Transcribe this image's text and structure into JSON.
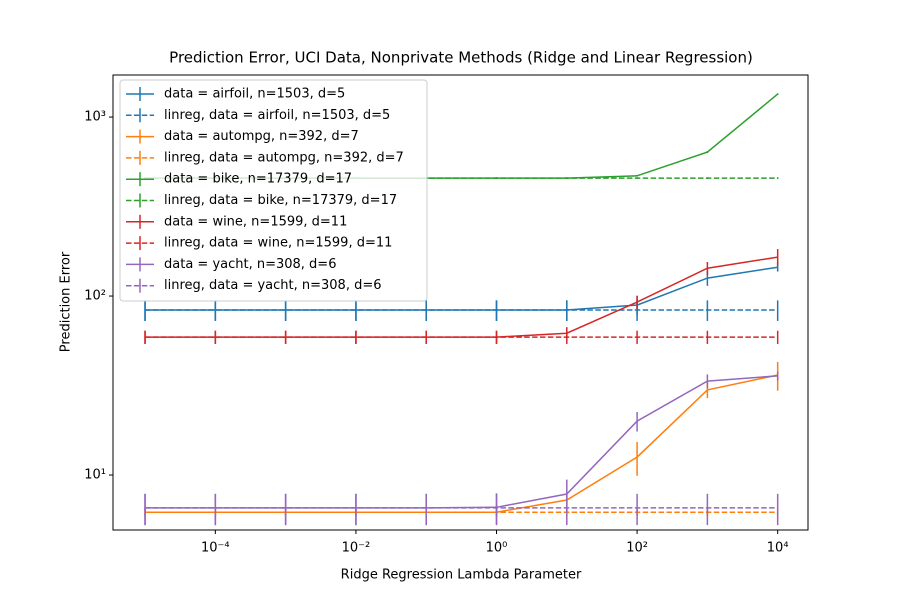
{
  "chart_data": {
    "type": "line",
    "title": "Prediction Error, UCI Data, Nonprivate Methods (Ridge and Linear Regression)",
    "xlabel": "Ridge Regression Lambda Parameter",
    "ylabel": "Prediction Error",
    "xscale": "log",
    "yscale": "log",
    "x": [
      1e-05,
      0.0001,
      0.001,
      0.01,
      0.1,
      1,
      10,
      100,
      1000,
      10000
    ],
    "xlim": [
      3.5e-06,
      27000
    ],
    "ylim": [
      4.93,
      1718
    ],
    "xticks": [
      {
        "value": 0.0001,
        "label": "10⁻⁴"
      },
      {
        "value": 0.01,
        "label": "10⁻²"
      },
      {
        "value": 1,
        "label": "10⁰"
      },
      {
        "value": 100,
        "label": "10²"
      },
      {
        "value": 10000,
        "label": "10⁴"
      }
    ],
    "yticks": [
      {
        "value": 10,
        "label": "10¹"
      },
      {
        "value": 100,
        "label": "10²"
      },
      {
        "value": 1000,
        "label": "10³"
      }
    ],
    "legend": "upper left",
    "series": [
      {
        "name": "data = airfoil, n=1503, d=5",
        "color": "#1f77b4",
        "linestyle": "solid",
        "values": [
          83.6,
          83.6,
          83.6,
          83.6,
          83.6,
          83.6,
          83.6,
          89,
          126,
          145
        ],
        "errors": [
          11,
          11,
          11,
          11,
          11,
          11,
          11,
          11,
          12,
          8
        ]
      },
      {
        "name": "linreg, data = airfoil, n=1503, d=5",
        "color": "#1f77b4",
        "linestyle": "dashed",
        "values": [
          83.6,
          83.6,
          83.6,
          83.6,
          83.6,
          83.6,
          83.6,
          83.6,
          83.6,
          83.6
        ],
        "errors": [
          11,
          11,
          11,
          11,
          11,
          11,
          11,
          11,
          11,
          11
        ]
      },
      {
        "name": "data = autompg, n=392, d=7",
        "color": "#ff7f0e",
        "linestyle": "solid",
        "values": [
          6.2,
          6.2,
          6.2,
          6.2,
          6.2,
          6.2,
          7.25,
          12.6,
          29.9,
          36.2
        ],
        "errors": [
          0.3,
          0.3,
          0.3,
          0.3,
          0.3,
          0.3,
          0.5,
          2.7,
          3,
          6.6
        ]
      },
      {
        "name": "linreg, data = autompg, n=392, d=7",
        "color": "#ff7f0e",
        "linestyle": "dashed",
        "values": [
          6.2,
          6.2,
          6.2,
          6.2,
          6.2,
          6.2,
          6.2,
          6.2,
          6.2,
          6.2
        ],
        "errors": [
          0.3,
          0.3,
          0.3,
          0.3,
          0.3,
          0.3,
          0.3,
          0.3,
          0.3,
          0.3
        ]
      },
      {
        "name": "data = bike, n=17379, d=17",
        "color": "#2ca02c",
        "linestyle": "solid",
        "values": [
          456,
          456,
          456,
          456,
          456,
          456,
          456,
          470,
          637,
          1343
        ],
        "errors": [
          5,
          5,
          5,
          5,
          5,
          5,
          5,
          5,
          8,
          15
        ]
      },
      {
        "name": "linreg, data = bike, n=17379, d=17",
        "color": "#2ca02c",
        "linestyle": "dashed",
        "values": [
          456,
          456,
          456,
          456,
          456,
          456,
          456,
          456,
          456,
          456
        ],
        "errors": [
          5,
          5,
          5,
          5,
          5,
          5,
          5,
          5,
          5,
          5
        ]
      },
      {
        "name": "data = wine, n=1599, d=11",
        "color": "#d62728",
        "linestyle": "solid",
        "values": [
          59,
          59,
          59,
          59,
          59,
          59,
          62,
          92.5,
          143,
          165
        ],
        "errors": [
          5,
          5,
          5,
          5,
          5,
          5,
          5,
          8,
          12,
          18
        ]
      },
      {
        "name": "linreg, data = wine, n=1599, d=11",
        "color": "#d62728",
        "linestyle": "dashed",
        "values": [
          59,
          59,
          59,
          59,
          59,
          59,
          59,
          59,
          59,
          59
        ],
        "errors": [
          5,
          5,
          5,
          5,
          5,
          5,
          5,
          5,
          5,
          5
        ]
      },
      {
        "name": "data = yacht, n=308, d=6",
        "color": "#9467bd",
        "linestyle": "solid",
        "values": [
          6.55,
          6.55,
          6.55,
          6.55,
          6.55,
          6.6,
          7.83,
          20,
          33.5,
          35.8
        ],
        "errors": [
          1.3,
          1.3,
          1.3,
          1.3,
          1.3,
          1.3,
          1.6,
          2.5,
          3,
          2
        ]
      },
      {
        "name": "linreg, data = yacht, n=308, d=6",
        "color": "#9467bd",
        "linestyle": "dashed",
        "values": [
          6.55,
          6.55,
          6.55,
          6.55,
          6.55,
          6.55,
          6.55,
          6.55,
          6.55,
          6.55
        ],
        "errors": [
          1.3,
          1.3,
          1.3,
          1.3,
          1.3,
          1.3,
          1.3,
          1.3,
          1.3,
          1.3
        ]
      }
    ]
  }
}
